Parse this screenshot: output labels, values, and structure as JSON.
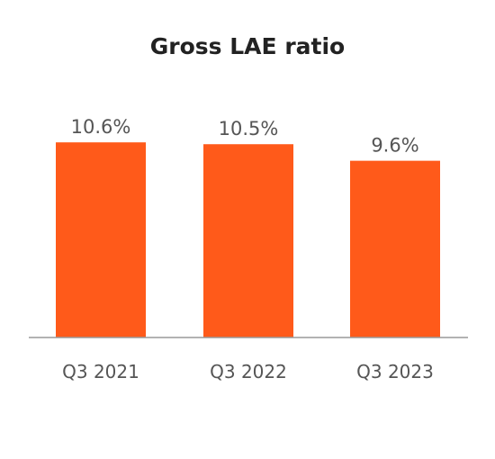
{
  "chart_data": {
    "type": "bar",
    "title": "Gross LAE ratio",
    "categories": [
      "Q3 2021",
      "Q3 2022",
      "Q3 2023"
    ],
    "values": [
      10.6,
      10.5,
      9.6
    ],
    "data_labels": [
      "10.6%",
      "10.5%",
      "9.6%"
    ],
    "unit": "%",
    "xlabel": "",
    "ylabel": "",
    "ylim": [
      0,
      11
    ],
    "grid": false,
    "legend": "none",
    "bar_color": "#FF5A1A",
    "axis_color": "#999999",
    "text_color": "#555555",
    "title_color": "#222222"
  }
}
